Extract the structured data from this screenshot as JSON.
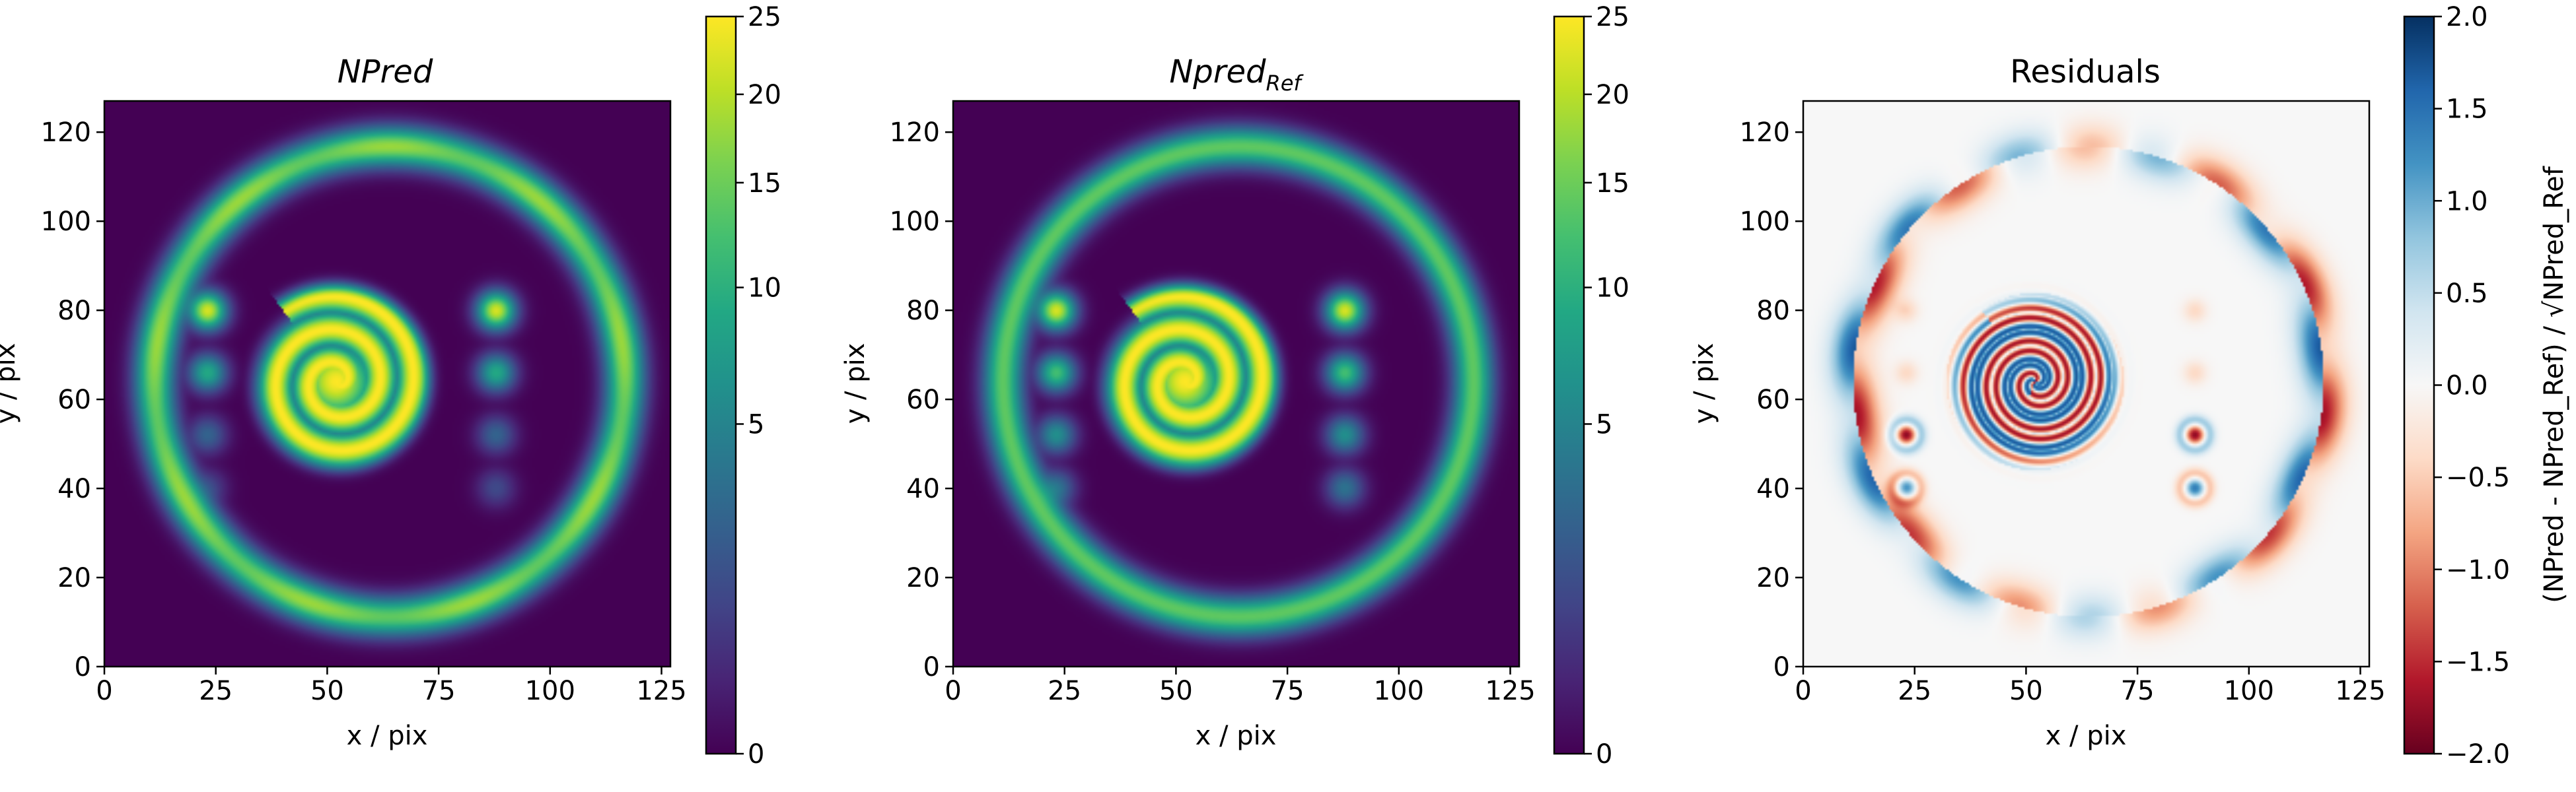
{
  "chart_data": [
    {
      "type": "heatmap",
      "title": "NPred",
      "title_italic": true,
      "xlabel": "x / pix",
      "ylabel": "y / pix",
      "xlim": [
        0,
        127
      ],
      "ylim": [
        0,
        127
      ],
      "xticks": [
        0,
        25,
        50,
        75,
        100,
        125
      ],
      "yticks": [
        0,
        20,
        40,
        60,
        80,
        100,
        120
      ],
      "colormap": "viridis",
      "colorbar": {
        "scale": "sqrt",
        "range": [
          0,
          25
        ],
        "ticks": [
          0,
          5,
          10,
          15,
          20,
          25
        ]
      },
      "features": {
        "ring": {
          "center": [
            64,
            64
          ],
          "radius": 53,
          "level": 16
        },
        "spiral": {
          "center": [
            52,
            64
          ],
          "level": 25
        },
        "sources_left": {
          "x": 23,
          "y": [
            80,
            66,
            52,
            40
          ],
          "levels": [
            22,
            9,
            2.5,
            1.2
          ]
        },
        "sources_right": {
          "x": 88,
          "y": [
            80,
            66,
            52,
            40
          ],
          "levels": [
            22,
            9,
            2.5,
            1.2
          ]
        }
      }
    },
    {
      "type": "heatmap",
      "title": "Npred",
      "title_sub": "Ref",
      "title_italic": true,
      "xlabel": "x / pix",
      "ylabel": "y / pix",
      "xlim": [
        0,
        127
      ],
      "ylim": [
        0,
        127
      ],
      "xticks": [
        0,
        25,
        50,
        75,
        100,
        125
      ],
      "yticks": [
        0,
        20,
        40,
        60,
        80,
        100,
        120
      ],
      "colormap": "viridis",
      "colorbar": {
        "scale": "sqrt",
        "range": [
          0,
          25
        ],
        "ticks": [
          0,
          5,
          10,
          15,
          20,
          25
        ]
      },
      "features": {
        "ring": {
          "center": [
            64,
            64
          ],
          "radius": 53,
          "level": 14
        },
        "spiral": {
          "center": [
            52,
            64
          ],
          "level": 25
        },
        "sources_left": {
          "x": 23,
          "y": [
            80,
            66,
            52,
            40
          ],
          "levels": [
            22,
            12,
            6,
            3.5
          ]
        },
        "sources_right": {
          "x": 88,
          "y": [
            80,
            66,
            52,
            40
          ],
          "levels": [
            22,
            12,
            6,
            3.5
          ]
        }
      }
    },
    {
      "type": "heatmap",
      "title": "Residuals",
      "xlabel": "x / pix",
      "ylabel": "y / pix",
      "xlim": [
        0,
        127
      ],
      "ylim": [
        0,
        127
      ],
      "xticks": [
        0,
        25,
        50,
        75,
        100,
        125
      ],
      "yticks": [
        0,
        20,
        40,
        60,
        80,
        100,
        120
      ],
      "colormap": "RdBu",
      "colorbar": {
        "scale": "linear",
        "range": [
          -2.0,
          2.0
        ],
        "ticks": [
          2.0,
          1.5,
          1.0,
          0.5,
          0.0,
          -0.5,
          -1.0,
          -1.5,
          -2.0
        ],
        "tick_labels": [
          "2.0",
          "1.5",
          "1.0",
          "0.5",
          "0.0",
          "−0.5",
          "−1.0",
          "−1.5",
          "−2.0"
        ],
        "label": "(NPred - NPred_Ref) / √NPred_Ref"
      },
      "features": {
        "ring_residual": {
          "center": [
            64,
            64
          ],
          "radius": 53,
          "range": [
            -1.2,
            1.2
          ]
        },
        "spiral_residual": {
          "center": [
            52,
            64
          ],
          "range": [
            -1.8,
            1.6
          ]
        },
        "sources": {
          "x": [
            23,
            88
          ],
          "y": [
            52,
            40
          ],
          "levels": [
            1.8,
            -1.4
          ]
        }
      }
    }
  ]
}
